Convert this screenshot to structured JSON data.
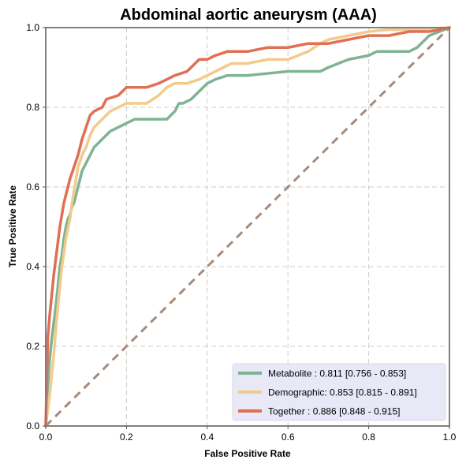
{
  "chart_data": {
    "type": "line",
    "title": "Abdominal aortic aneurysm (AAA)",
    "xlabel": "False Positive Rate",
    "ylabel": "True Positive Rate",
    "xlim": [
      0,
      1
    ],
    "ylim": [
      0,
      1
    ],
    "x_ticks": [
      "0.0",
      "0.2",
      "0.4",
      "0.6",
      "0.8",
      "1.0"
    ],
    "y_ticks": [
      "0.0",
      "0.2",
      "0.4",
      "0.6",
      "0.8",
      "1.0"
    ],
    "grid": true,
    "legend_position": "bottom-right",
    "reference_line": {
      "x": [
        0,
        1
      ],
      "y": [
        0,
        1
      ],
      "color": "#A58B7C",
      "style": "dashed"
    },
    "series": [
      {
        "name": "Metabolite",
        "legend_label": "Metabolite      : 0.811 [0.756 - 0.853]",
        "color": "#7FB394",
        "x": [
          0,
          0.005,
          0.01,
          0.015,
          0.02,
          0.025,
          0.03,
          0.035,
          0.04,
          0.045,
          0.05,
          0.055,
          0.06,
          0.065,
          0.07,
          0.075,
          0.08,
          0.085,
          0.09,
          0.1,
          0.11,
          0.12,
          0.13,
          0.14,
          0.15,
          0.16,
          0.18,
          0.2,
          0.22,
          0.25,
          0.28,
          0.3,
          0.32,
          0.33,
          0.34,
          0.36,
          0.38,
          0.39,
          0.4,
          0.42,
          0.45,
          0.5,
          0.55,
          0.6,
          0.62,
          0.65,
          0.68,
          0.7,
          0.75,
          0.8,
          0.82,
          0.85,
          0.9,
          0.92,
          0.95,
          1.0
        ],
        "y": [
          0,
          0.1,
          0.17,
          0.22,
          0.26,
          0.3,
          0.35,
          0.4,
          0.43,
          0.47,
          0.5,
          0.52,
          0.53,
          0.55,
          0.56,
          0.58,
          0.6,
          0.62,
          0.64,
          0.66,
          0.68,
          0.7,
          0.71,
          0.72,
          0.73,
          0.74,
          0.75,
          0.76,
          0.77,
          0.77,
          0.77,
          0.77,
          0.79,
          0.81,
          0.81,
          0.82,
          0.84,
          0.85,
          0.86,
          0.87,
          0.88,
          0.88,
          0.885,
          0.89,
          0.89,
          0.89,
          0.89,
          0.9,
          0.92,
          0.93,
          0.94,
          0.94,
          0.94,
          0.95,
          0.98,
          1.0
        ]
      },
      {
        "name": "Demographic",
        "legend_label": "Demographic: 0.853 [0.815 - 0.891]",
        "color": "#F2CB8C",
        "x": [
          0,
          0.01,
          0.02,
          0.03,
          0.04,
          0.05,
          0.06,
          0.065,
          0.07,
          0.075,
          0.08,
          0.09,
          0.1,
          0.11,
          0.12,
          0.14,
          0.16,
          0.18,
          0.2,
          0.25,
          0.28,
          0.3,
          0.32,
          0.35,
          0.38,
          0.4,
          0.42,
          0.44,
          0.46,
          0.5,
          0.55,
          0.6,
          0.65,
          0.68,
          0.7,
          0.75,
          0.8,
          0.85,
          0.9,
          1.0
        ],
        "y": [
          0,
          0.08,
          0.18,
          0.3,
          0.4,
          0.47,
          0.52,
          0.56,
          0.59,
          0.62,
          0.65,
          0.68,
          0.7,
          0.73,
          0.75,
          0.77,
          0.79,
          0.8,
          0.81,
          0.81,
          0.83,
          0.85,
          0.86,
          0.86,
          0.87,
          0.88,
          0.89,
          0.9,
          0.91,
          0.91,
          0.92,
          0.92,
          0.94,
          0.96,
          0.97,
          0.98,
          0.99,
          0.995,
          0.995,
          1.0
        ]
      },
      {
        "name": "Together",
        "legend_label": "Together       : 0.886 [0.848 - 0.915]",
        "color": "#E06F54",
        "x": [
          0,
          0.005,
          0.01,
          0.015,
          0.02,
          0.025,
          0.03,
          0.035,
          0.04,
          0.045,
          0.05,
          0.055,
          0.06,
          0.07,
          0.08,
          0.09,
          0.1,
          0.11,
          0.12,
          0.14,
          0.15,
          0.18,
          0.2,
          0.22,
          0.25,
          0.28,
          0.3,
          0.32,
          0.35,
          0.36,
          0.38,
          0.4,
          0.42,
          0.45,
          0.5,
          0.55,
          0.6,
          0.65,
          0.7,
          0.75,
          0.8,
          0.85,
          0.9,
          0.95,
          1.0
        ],
        "y": [
          0,
          0.22,
          0.28,
          0.33,
          0.38,
          0.42,
          0.46,
          0.5,
          0.53,
          0.56,
          0.58,
          0.6,
          0.62,
          0.65,
          0.68,
          0.72,
          0.75,
          0.78,
          0.79,
          0.8,
          0.82,
          0.83,
          0.85,
          0.85,
          0.85,
          0.86,
          0.87,
          0.88,
          0.89,
          0.9,
          0.92,
          0.92,
          0.93,
          0.94,
          0.94,
          0.95,
          0.95,
          0.96,
          0.96,
          0.97,
          0.98,
          0.98,
          0.99,
          0.99,
          1.0
        ]
      }
    ]
  }
}
